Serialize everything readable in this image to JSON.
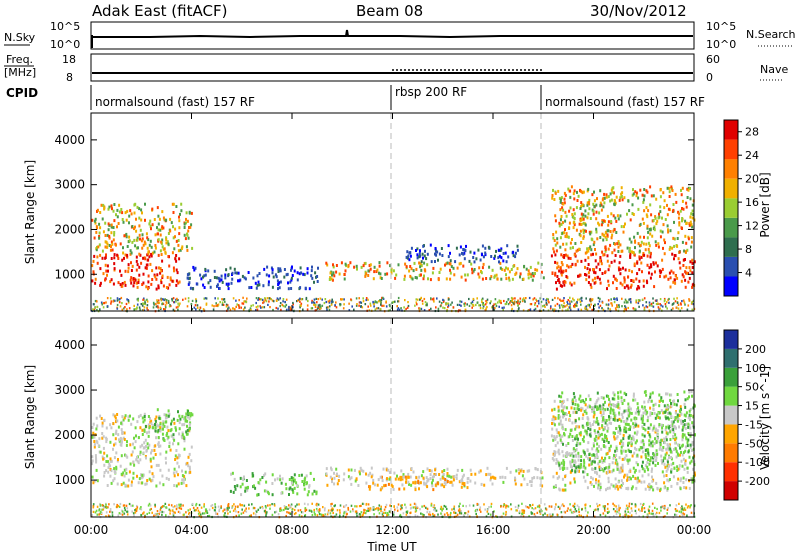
{
  "header": {
    "station": "Adak East (fitACF)",
    "beam": "Beam 08",
    "date": "30/Nov/2012"
  },
  "noise_panel": {
    "left_label": "N.Sky",
    "right_label": "N.Search",
    "ticks_left": [
      "10^5",
      "10^0"
    ],
    "ticks_right": [
      "10^5",
      "10^0"
    ]
  },
  "freq_panel": {
    "left_label_line1": "Freq.",
    "left_label_line2": "[MHz]",
    "right_label": "Nave",
    "ticks_left": [
      "18",
      "8"
    ],
    "ticks_right": [
      "60",
      "0"
    ]
  },
  "cpid": {
    "label": "CPID",
    "segments": [
      {
        "name": "normalsound (fast) 157 RF",
        "start_hour": 0
      },
      {
        "name": "rbsp 200 RF",
        "start_hour": 12
      },
      {
        "name": "normalsound (fast) 157 RF",
        "start_hour": 18
      }
    ]
  },
  "chart_data": [
    {
      "type": "heatmap",
      "panel": "power",
      "ylabel": "Slant Range [km]",
      "ylim": [
        180,
        4600
      ],
      "yticks": [
        "1000",
        "2000",
        "3000",
        "4000"
      ],
      "xlim_hours": [
        0,
        24
      ],
      "colorbar": {
        "label": "Power [dB]",
        "ticks": [
          "4",
          "8",
          "12",
          "16",
          "20",
          "24",
          "28"
        ],
        "range": [
          0,
          30
        ]
      },
      "regions": [
        {
          "t0": 0.0,
          "t1": 3.5,
          "r0": 700,
          "r1": 1500,
          "level": "high"
        },
        {
          "t0": 0.0,
          "t1": 4.0,
          "r0": 1500,
          "r1": 2600,
          "level": "mid-high"
        },
        {
          "t0": 3.8,
          "t1": 9.0,
          "r0": 700,
          "r1": 1200,
          "level": "low"
        },
        {
          "t0": 9.3,
          "t1": 18.0,
          "r0": 900,
          "r1": 1300,
          "level": "mid"
        },
        {
          "t0": 12.5,
          "t1": 17.0,
          "r0": 1300,
          "r1": 1700,
          "level": "low"
        },
        {
          "t0": 18.3,
          "t1": 24.0,
          "r0": 700,
          "r1": 1500,
          "level": "high"
        },
        {
          "t0": 18.3,
          "t1": 24.0,
          "r0": 1500,
          "r1": 3000,
          "level": "mid-high"
        }
      ]
    },
    {
      "type": "heatmap",
      "panel": "velocity",
      "ylabel": "Slant Range [km]",
      "ylim": [
        180,
        4600
      ],
      "yticks": [
        "1000",
        "2000",
        "3000",
        "4000"
      ],
      "xlim_hours": [
        0,
        24
      ],
      "xticks": [
        "00:00",
        "04:00",
        "08:00",
        "12:00",
        "16:00",
        "20:00",
        "00:00"
      ],
      "xlabel": "Time UT",
      "colorbar": {
        "label": "Velocity [m s^-1]",
        "ticks": [
          "200",
          "100",
          "50",
          "15",
          "-15",
          "-50",
          "-100",
          "-200"
        ]
      },
      "regions": [
        {
          "t0": 0.0,
          "t1": 4.0,
          "r0": 900,
          "r1": 2500,
          "level": "near-zero"
        },
        {
          "t0": 2.0,
          "t1": 4.0,
          "r0": 1900,
          "r1": 2600,
          "level": "positive"
        },
        {
          "t0": 5.5,
          "t1": 9.0,
          "r0": 700,
          "r1": 1200,
          "level": "positive"
        },
        {
          "t0": 9.3,
          "t1": 18.0,
          "r0": 900,
          "r1": 1300,
          "level": "near-zero"
        },
        {
          "t0": 11.0,
          "t1": 15.0,
          "r0": 800,
          "r1": 1100,
          "level": "negative"
        },
        {
          "t0": 18.3,
          "t1": 24.0,
          "r0": 800,
          "r1": 2800,
          "level": "near-zero"
        },
        {
          "t0": 18.5,
          "t1": 24.0,
          "r0": 1200,
          "r1": 3000,
          "level": "positive"
        }
      ]
    }
  ],
  "colors": {
    "power": [
      "#0000ff",
      "#2a4fb0",
      "#2f6e4f",
      "#4a9a4a",
      "#9acd32",
      "#f0b000",
      "#ff8000",
      "#ff4000",
      "#e00000"
    ],
    "velocity": [
      "#1c2f9c",
      "#2f6f6f",
      "#3aa03a",
      "#70d840",
      "#c8c8c8",
      "#ffa500",
      "#ff7b00",
      "#ff3000",
      "#d00000"
    ]
  }
}
